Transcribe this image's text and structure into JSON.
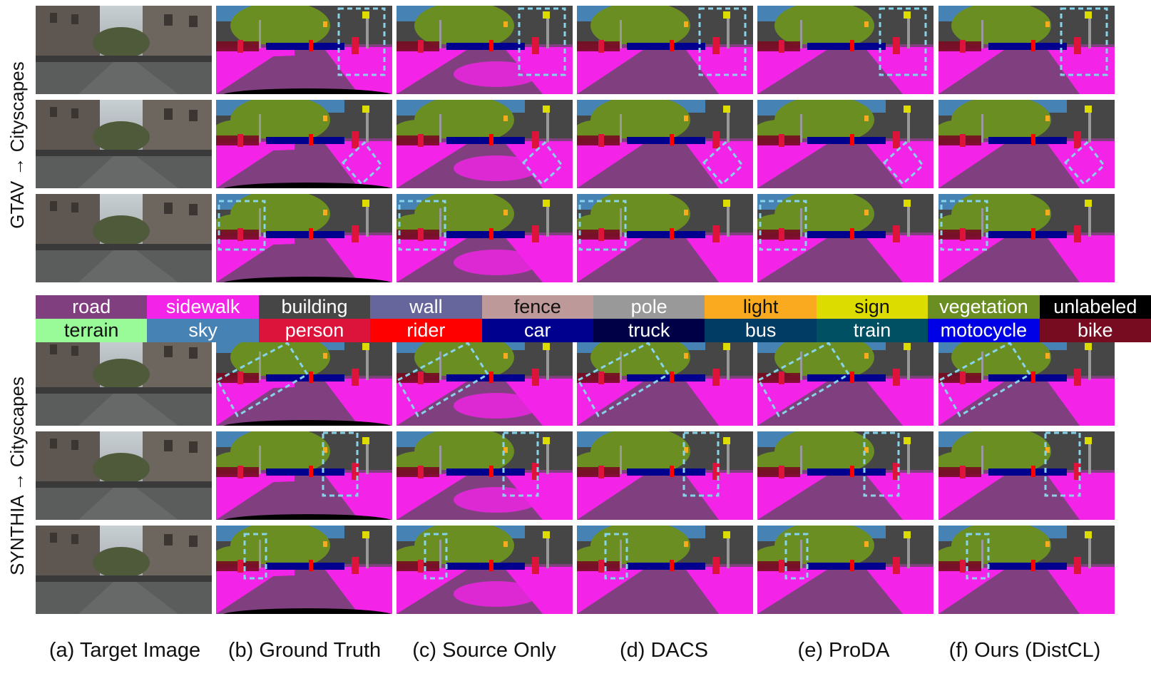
{
  "side_labels": [
    "GTAV → Cityscapes",
    "SYNTHIA → Cityscapes"
  ],
  "legend": [
    {
      "label": "road",
      "color": "#804080"
    },
    {
      "label": "sidewalk",
      "color": "#f423e8"
    },
    {
      "label": "building",
      "color": "#464646"
    },
    {
      "label": "wall",
      "color": "#66669c"
    },
    {
      "label": "fence",
      "color": "#be9999"
    },
    {
      "label": "pole",
      "color": "#999999"
    },
    {
      "label": "light",
      "color": "#faaa1e"
    },
    {
      "label": "sign",
      "color": "#dcdc00"
    },
    {
      "label": "vegetation",
      "color": "#6b8e23"
    },
    {
      "label": "unlabeled",
      "color": "#000000"
    },
    {
      "label": "terrain",
      "color": "#98fb98"
    },
    {
      "label": "sky",
      "color": "#4682b4"
    },
    {
      "label": "person",
      "color": "#dc143c"
    },
    {
      "label": "rider",
      "color": "#ff0000"
    },
    {
      "label": "car",
      "color": "#00008e"
    },
    {
      "label": "truck",
      "color": "#000046"
    },
    {
      "label": "bus",
      "color": "#003c64"
    },
    {
      "label": "train",
      "color": "#005064"
    },
    {
      "label": "motocycle",
      "color": "#0000e6"
    },
    {
      "label": "bike",
      "color": "#770b20"
    }
  ],
  "columns": [
    "(a) Target Image",
    "(b) Ground Truth",
    "(c) Source Only",
    "(d) DACS",
    "(e) ProDA",
    "(f) Ours (DistCL)"
  ]
}
